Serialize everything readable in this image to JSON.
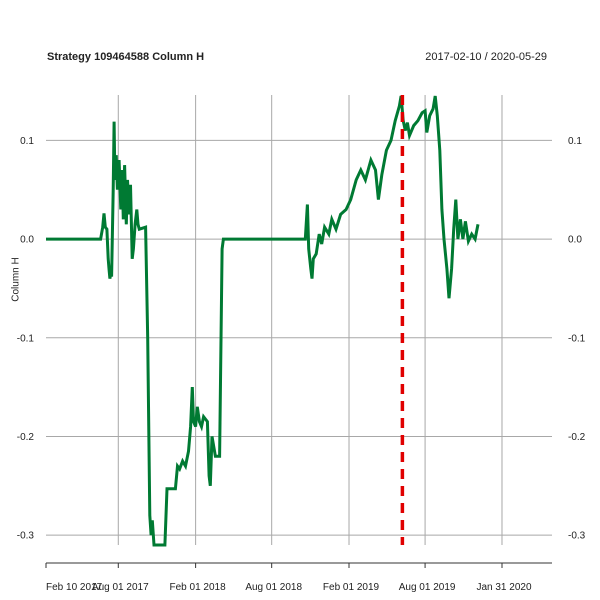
{
  "chart_data": {
    "type": "line",
    "title": "Strategy 109464588 Column H",
    "date_range": "2017-02-10 / 2020-05-29",
    "ylabel": "Column H",
    "x_range": [
      "2017-02-10",
      "2020-05-29"
    ],
    "ylim": [
      -0.31,
      0.146
    ],
    "y_ticks": [
      0.1,
      0.0,
      -0.1,
      -0.2,
      -0.3
    ],
    "y_tick_labels": [
      "0.1",
      "0.0",
      "-0.1",
      "-0.2",
      "-0.3"
    ],
    "x_ticks": [
      {
        "date": "2017-02-10",
        "label": "Feb 10 2017"
      },
      {
        "date": "2017-08-01",
        "label": "Aug 01 2017"
      },
      {
        "date": "2018-02-01",
        "label": "Feb 01 2018"
      },
      {
        "date": "2018-08-01",
        "label": "Aug 01 2018"
      },
      {
        "date": "2019-02-01",
        "label": "Feb 01 2019"
      },
      {
        "date": "2019-08-01",
        "label": "Aug 01 2019"
      },
      {
        "date": "2020-01-31",
        "label": "Jan 31 2020"
      }
    ],
    "grid": true,
    "series": [
      {
        "color": "#007a33",
        "points": [
          [
            "2017-02-10",
            0.0
          ],
          [
            "2017-06-20",
            0.0
          ],
          [
            "2017-06-25",
            0.012
          ],
          [
            "2017-06-28",
            0.026
          ],
          [
            "2017-07-01",
            0.012
          ],
          [
            "2017-07-05",
            0.01
          ],
          [
            "2017-07-08",
            -0.02
          ],
          [
            "2017-07-10",
            -0.03
          ],
          [
            "2017-07-12",
            -0.04
          ],
          [
            "2017-07-14",
            -0.035
          ],
          [
            "2017-07-16",
            -0.038
          ],
          [
            "2017-07-20",
            0.05
          ],
          [
            "2017-07-22",
            0.119
          ],
          [
            "2017-07-24",
            0.06
          ],
          [
            "2017-07-27",
            0.085
          ],
          [
            "2017-07-30",
            0.05
          ],
          [
            "2017-08-03",
            0.08
          ],
          [
            "2017-08-07",
            0.03
          ],
          [
            "2017-08-10",
            0.07
          ],
          [
            "2017-08-13",
            0.02
          ],
          [
            "2017-08-16",
            0.075
          ],
          [
            "2017-08-20",
            0.015
          ],
          [
            "2017-08-23",
            0.06
          ],
          [
            "2017-08-27",
            0.025
          ],
          [
            "2017-08-30",
            0.055
          ],
          [
            "2017-09-03",
            -0.02
          ],
          [
            "2017-09-06",
            -0.01
          ],
          [
            "2017-09-10",
            0.015
          ],
          [
            "2017-09-14",
            0.03
          ],
          [
            "2017-09-17",
            0.015
          ],
          [
            "2017-09-20",
            0.01
          ],
          [
            "2017-10-05",
            0.012
          ],
          [
            "2017-10-10",
            -0.1
          ],
          [
            "2017-10-15",
            -0.28
          ],
          [
            "2017-10-18",
            -0.3
          ],
          [
            "2017-10-21",
            -0.285
          ],
          [
            "2017-10-25",
            -0.31
          ],
          [
            "2017-11-20",
            -0.31
          ],
          [
            "2017-11-25",
            -0.253
          ],
          [
            "2017-12-01",
            -0.253
          ],
          [
            "2017-12-15",
            -0.253
          ],
          [
            "2017-12-20",
            -0.23
          ],
          [
            "2017-12-25",
            -0.233
          ],
          [
            "2018-01-01",
            -0.225
          ],
          [
            "2018-01-08",
            -0.23
          ],
          [
            "2018-01-15",
            -0.215
          ],
          [
            "2018-01-20",
            -0.19
          ],
          [
            "2018-01-24",
            -0.15
          ],
          [
            "2018-01-27",
            -0.185
          ],
          [
            "2018-02-01",
            -0.19
          ],
          [
            "2018-02-05",
            -0.17
          ],
          [
            "2018-02-10",
            -0.185
          ],
          [
            "2018-02-15",
            -0.19
          ],
          [
            "2018-02-20",
            -0.18
          ],
          [
            "2018-03-01",
            -0.185
          ],
          [
            "2018-03-05",
            -0.24
          ],
          [
            "2018-03-08",
            -0.25
          ],
          [
            "2018-03-12",
            -0.2
          ],
          [
            "2018-03-20",
            -0.22
          ],
          [
            "2018-03-30",
            -0.22
          ],
          [
            "2018-04-05",
            -0.01
          ],
          [
            "2018-04-08",
            0.0
          ],
          [
            "2018-10-20",
            0.0
          ],
          [
            "2018-10-25",
            0.035
          ],
          [
            "2018-10-28",
            -0.01
          ],
          [
            "2018-11-02",
            -0.03
          ],
          [
            "2018-11-05",
            -0.04
          ],
          [
            "2018-11-08",
            -0.02
          ],
          [
            "2018-11-15",
            -0.015
          ],
          [
            "2018-11-22",
            0.005
          ],
          [
            "2018-11-28",
            -0.005
          ],
          [
            "2018-12-05",
            0.012
          ],
          [
            "2018-12-15",
            0.005
          ],
          [
            "2018-12-22",
            0.02
          ],
          [
            "2019-01-01",
            0.01
          ],
          [
            "2019-01-12",
            0.025
          ],
          [
            "2019-01-25",
            0.03
          ],
          [
            "2019-02-05",
            0.04
          ],
          [
            "2019-02-18",
            0.06
          ],
          [
            "2019-03-01",
            0.07
          ],
          [
            "2019-03-12",
            0.06
          ],
          [
            "2019-03-25",
            0.08
          ],
          [
            "2019-04-05",
            0.07
          ],
          [
            "2019-04-12",
            0.04
          ],
          [
            "2019-04-20",
            0.065
          ],
          [
            "2019-05-01",
            0.09
          ],
          [
            "2019-05-12",
            0.1
          ],
          [
            "2019-05-22",
            0.12
          ],
          [
            "2019-06-01",
            0.135
          ],
          [
            "2019-06-05",
            0.145
          ],
          [
            "2019-06-10",
            0.12
          ],
          [
            "2019-06-15",
            0.11
          ],
          [
            "2019-06-20",
            0.118
          ],
          [
            "2019-06-25",
            0.105
          ],
          [
            "2019-07-05",
            0.115
          ],
          [
            "2019-07-15",
            0.12
          ],
          [
            "2019-07-25",
            0.128
          ],
          [
            "2019-08-01",
            0.13
          ],
          [
            "2019-08-05",
            0.108
          ],
          [
            "2019-08-12",
            0.125
          ],
          [
            "2019-08-20",
            0.132
          ],
          [
            "2019-08-25",
            0.145
          ],
          [
            "2019-08-30",
            0.125
          ],
          [
            "2019-09-05",
            0.09
          ],
          [
            "2019-09-10",
            0.03
          ],
          [
            "2019-09-15",
            0.0
          ],
          [
            "2019-09-22",
            -0.03
          ],
          [
            "2019-09-27",
            -0.06
          ],
          [
            "2019-10-03",
            -0.03
          ],
          [
            "2019-10-08",
            0.01
          ],
          [
            "2019-10-13",
            0.04
          ],
          [
            "2019-10-18",
            0.0
          ],
          [
            "2019-10-24",
            0.02
          ],
          [
            "2019-10-30",
            0.0
          ],
          [
            "2019-11-05",
            0.018
          ],
          [
            "2019-11-12",
            -0.002
          ],
          [
            "2019-11-20",
            0.005
          ],
          [
            "2019-11-28",
            0.0
          ],
          [
            "2019-12-05",
            0.015
          ]
        ]
      }
    ],
    "marker": {
      "date": "2019-06-08",
      "color": "#e00000",
      "style": "dashed"
    }
  }
}
